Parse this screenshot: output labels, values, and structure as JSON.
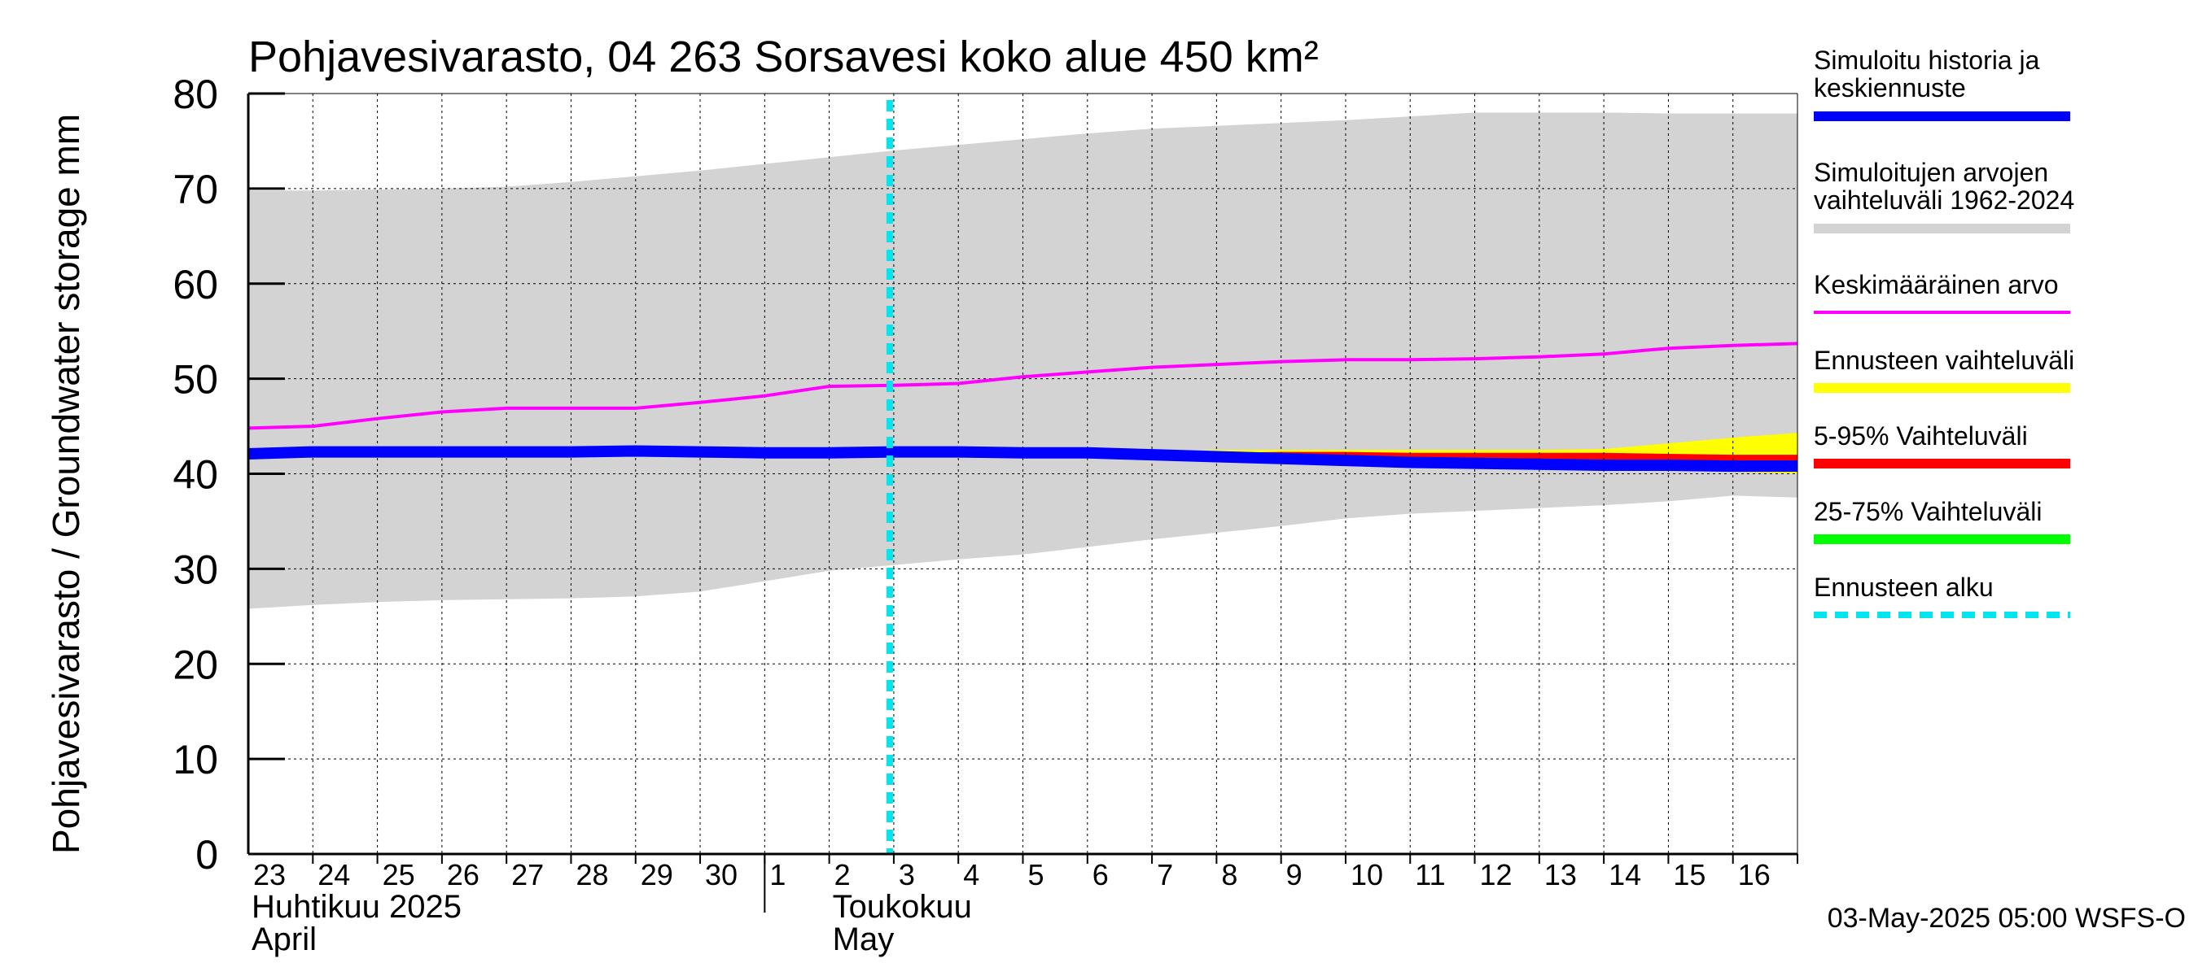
{
  "colors": {
    "simulated": "#0000ff",
    "range_hist": "#d3d3d3",
    "mean": "#ff00ff",
    "forecast_range": "#ffff00",
    "p5_95": "#ff0000",
    "p25_75": "#00ff00",
    "forecast_start": "#00e5ee",
    "grid": "#000000"
  },
  "chart_data": {
    "type": "line",
    "title": "Pohjavesivarasto, 04 263 Sorsavesi koko alue 450 km²",
    "ylabel": "Pohjavesivarasto / Groundwater storage   mm",
    "ylim": [
      0,
      80
    ],
    "yticks": [
      0,
      10,
      20,
      30,
      40,
      50,
      60,
      70,
      80
    ],
    "xlim": [
      "2025-04-23",
      "2025-05-17"
    ],
    "x_tick_labels": [
      "23",
      "24",
      "25",
      "26",
      "27",
      "28",
      "29",
      "30",
      "1",
      "2",
      "3",
      "4",
      "5",
      "6",
      "7",
      "8",
      "9",
      "10",
      "11",
      "12",
      "13",
      "14",
      "15",
      "16"
    ],
    "month_labels": [
      {
        "line1": "Huhtikuu  2025",
        "line2": "April"
      },
      {
        "line1": "Toukokuu",
        "line2": "May"
      }
    ],
    "forecast_start": "2025-05-03",
    "timestamp": "03-May-2025 05:00 WSFS-O",
    "x": [
      "2025-04-23",
      "2025-04-24",
      "2025-04-25",
      "2025-04-26",
      "2025-04-27",
      "2025-04-28",
      "2025-04-29",
      "2025-04-30",
      "2025-05-01",
      "2025-05-02",
      "2025-05-03",
      "2025-05-04",
      "2025-05-05",
      "2025-05-06",
      "2025-05-07",
      "2025-05-08",
      "2025-05-09",
      "2025-05-10",
      "2025-05-11",
      "2025-05-12",
      "2025-05-13",
      "2025-05-14",
      "2025-05-15",
      "2025-05-16",
      "2025-05-17"
    ],
    "series": [
      {
        "name": "Simuloitujen arvojen vaihteluväli 1962-2024",
        "kind": "band",
        "lower": [
          25.8,
          26.2,
          26.5,
          26.7,
          26.8,
          26.9,
          27.1,
          27.6,
          28.7,
          29.8,
          30.4,
          31.0,
          31.5,
          32.3,
          33.1,
          33.8,
          34.5,
          35.3,
          35.8,
          36.1,
          36.4,
          36.7,
          37.1,
          37.7,
          37.5
        ],
        "upper": [
          69.8,
          69.8,
          69.9,
          70.0,
          70.2,
          70.7,
          71.3,
          71.9,
          72.6,
          73.3,
          74.0,
          74.6,
          75.2,
          75.8,
          76.3,
          76.6,
          76.9,
          77.2,
          77.6,
          78.0,
          78.0,
          78.0,
          77.9,
          77.9,
          77.9
        ]
      },
      {
        "name": "Ennusteen vaihteluväli",
        "kind": "band",
        "x": [
          "2025-05-03",
          "2025-05-04",
          "2025-05-05",
          "2025-05-06",
          "2025-05-07",
          "2025-05-08",
          "2025-05-09",
          "2025-05-10",
          "2025-05-11",
          "2025-05-12",
          "2025-05-13",
          "2025-05-14",
          "2025-05-15",
          "2025-05-16",
          "2025-05-17"
        ],
        "lower": [
          42.2,
          42.1,
          42.0,
          41.9,
          41.8,
          41.6,
          41.4,
          41.2,
          41.0,
          40.8,
          40.7,
          40.5,
          40.4,
          40.2,
          40.0
        ],
        "upper": [
          42.2,
          42.2,
          42.2,
          42.3,
          42.3,
          42.5,
          42.5,
          42.5,
          42.5,
          42.5,
          42.5,
          42.6,
          43.2,
          43.8,
          44.3
        ]
      },
      {
        "name": "5-95% Vaihteluväli",
        "kind": "band",
        "x": [
          "2025-05-03",
          "2025-05-04",
          "2025-05-05",
          "2025-05-06",
          "2025-05-07",
          "2025-05-08",
          "2025-05-09",
          "2025-05-10",
          "2025-05-11",
          "2025-05-12",
          "2025-05-13",
          "2025-05-14",
          "2025-05-15",
          "2025-05-16",
          "2025-05-17"
        ],
        "lower": [
          42.2,
          42.1,
          42.0,
          41.9,
          41.8,
          41.7,
          41.5,
          41.3,
          41.1,
          40.9,
          40.8,
          40.7,
          40.6,
          40.5,
          40.4
        ],
        "upper": [
          42.2,
          42.2,
          42.2,
          42.2,
          42.2,
          42.2,
          42.3,
          42.3,
          42.2,
          42.2,
          42.2,
          42.2,
          42.1,
          42.0,
          42.0
        ]
      },
      {
        "name": "25-75% Vaihteluväli",
        "kind": "band",
        "x": [
          "2025-05-03",
          "2025-05-04",
          "2025-05-05",
          "2025-05-06",
          "2025-05-07",
          "2025-05-08",
          "2025-05-09",
          "2025-05-10",
          "2025-05-11",
          "2025-05-12",
          "2025-05-13",
          "2025-05-14",
          "2025-05-15",
          "2025-05-16",
          "2025-05-17"
        ],
        "lower": [
          42.2,
          42.2,
          42.1,
          42.0,
          42.0,
          41.8,
          41.7,
          41.5,
          41.3,
          41.2,
          41.1,
          41.0,
          40.9,
          40.9,
          40.8
        ],
        "upper": [
          42.2,
          42.2,
          42.2,
          42.2,
          42.1,
          42.0,
          41.9,
          41.7,
          41.6,
          41.5,
          41.4,
          41.3,
          41.3,
          41.3,
          41.2
        ]
      },
      {
        "name": "Keskimääräinen arvo",
        "kind": "line",
        "values": [
          44.8,
          45.0,
          45.8,
          46.5,
          46.9,
          46.9,
          46.9,
          47.5,
          48.2,
          49.2,
          49.3,
          49.5,
          50.2,
          50.7,
          51.2,
          51.5,
          51.8,
          52.0,
          52.0,
          52.1,
          52.3,
          52.6,
          53.2,
          53.5,
          53.7
        ]
      },
      {
        "name": "Simuloitu historia ja keskiennuste",
        "kind": "line",
        "values": [
          42.1,
          42.3,
          42.3,
          42.3,
          42.3,
          42.3,
          42.4,
          42.3,
          42.2,
          42.2,
          42.3,
          42.3,
          42.2,
          42.2,
          42.0,
          41.8,
          41.6,
          41.4,
          41.2,
          41.1,
          41.0,
          40.9,
          40.9,
          40.8,
          40.8
        ]
      }
    ],
    "legend": {
      "placement": "right",
      "entries": [
        {
          "line1": "Simuloitu historia ja",
          "line2": "keskiennuste",
          "color": "#0000ff",
          "style": "solid"
        },
        {
          "line1": "Simuloitujen arvojen",
          "line2": "vaihteluväli 1962-2024",
          "color": "#d3d3d3",
          "style": "solid"
        },
        {
          "line1": "Keskimääräinen arvo",
          "line2": "",
          "color": "#ff00ff",
          "style": "thin"
        },
        {
          "line1": "Ennusteen vaihteluväli",
          "line2": "",
          "color": "#ffff00",
          "style": "solid"
        },
        {
          "line1": "5-95% Vaihteluväli",
          "line2": "",
          "color": "#ff0000",
          "style": "solid"
        },
        {
          "line1": "25-75% Vaihteluväli",
          "line2": "",
          "color": "#00ff00",
          "style": "solid"
        },
        {
          "line1": "Ennusteen alku",
          "line2": "",
          "color": "#00e5ee",
          "style": "dashed"
        }
      ]
    }
  }
}
